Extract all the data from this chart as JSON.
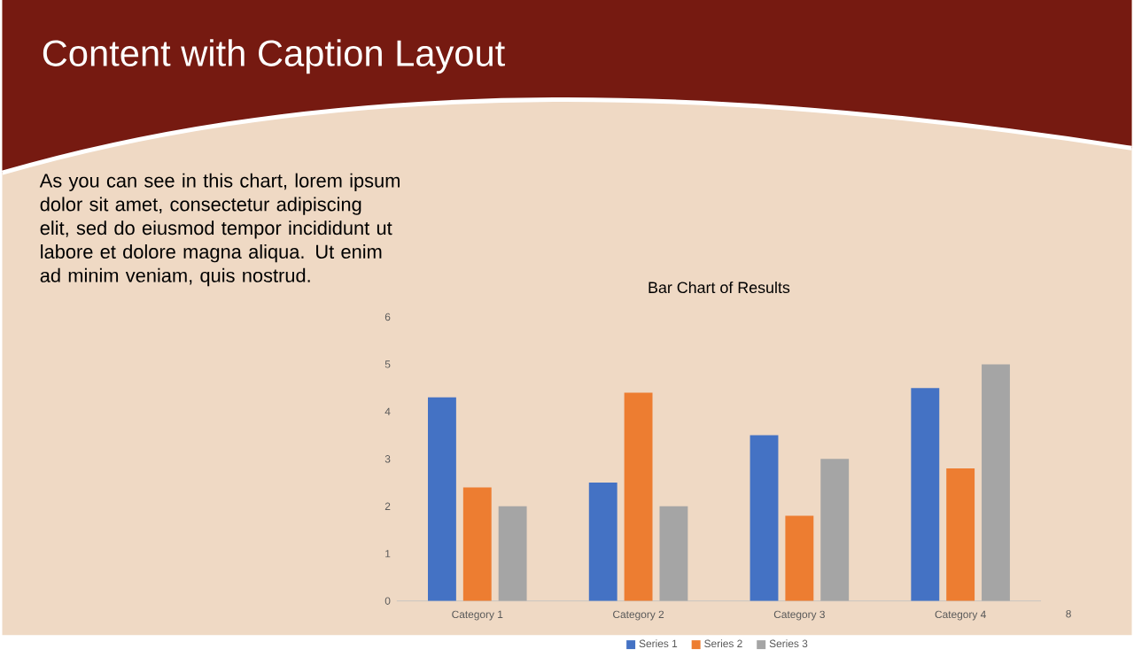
{
  "chart_data": {
    "type": "bar",
    "title": "Bar Chart of Results",
    "categories": [
      "Category 1",
      "Category 2",
      "Category 3",
      "Category 4"
    ],
    "series": [
      {
        "name": "Series 1",
        "color": "#4472c4",
        "values": [
          4.3,
          2.5,
          3.5,
          4.5
        ]
      },
      {
        "name": "Series 2",
        "color": "#ed7d31",
        "values": [
          2.4,
          4.4,
          1.8,
          2.8
        ]
      },
      {
        "name": "Series 3",
        "color": "#a5a5a5",
        "values": [
          2,
          2,
          3,
          5
        ]
      }
    ],
    "ylim": [
      0,
      6
    ],
    "yticks": [
      0,
      1,
      2,
      3,
      4,
      5,
      6
    ],
    "legend": "bottom",
    "annotations": [
      "Content with Caption Layout",
      "As you can see in this chart, lorem ipsum dolor sit amet, consectetur adipiscing elit, sed do eiusmod tempor incididunt ut labore et dolore magna aliqua. Ut enim ad minim veniam, quis nostrud.",
      "8"
    ]
  }
}
